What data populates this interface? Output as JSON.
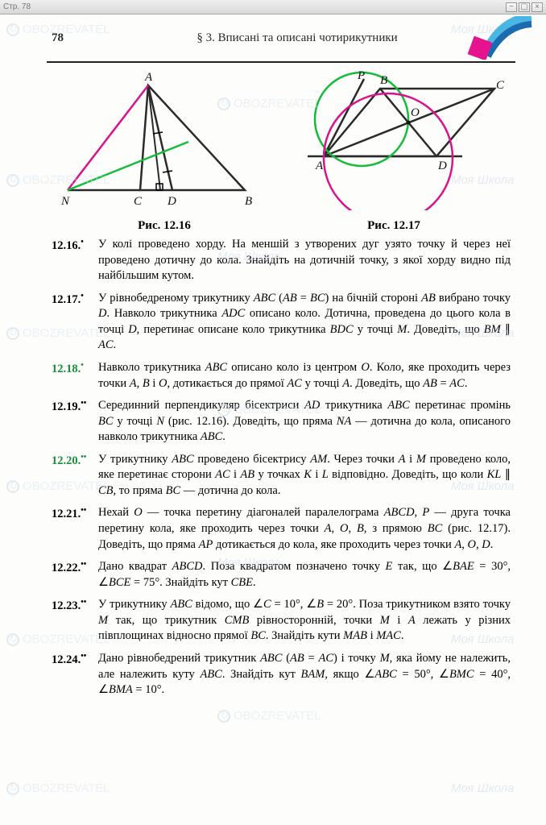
{
  "browser": {
    "left": "Стр. 78",
    "right_icons": [
      "▭",
      "⬓",
      "✕"
    ]
  },
  "header": {
    "page_number": "78",
    "section": "§ 3. Вписані та описані чотирикутники"
  },
  "watermarks": {
    "text_obz": "OBOZREVATEL",
    "text_school": "Моя Школа"
  },
  "figures": {
    "fig1_caption": "Рис. 12.16",
    "fig2_caption": "Рис. 12.17",
    "fig1_labels": {
      "A": "A",
      "N": "N",
      "C": "C",
      "D": "D",
      "B": "B"
    },
    "fig2_labels": {
      "P": "P",
      "B": "B",
      "C": "C",
      "A": "A",
      "O": "O",
      "D": "D"
    },
    "colors": {
      "stroke": "#2a2a2a",
      "green": "#14bc3a",
      "magenta": "#d8138e",
      "tick": "#000000"
    }
  },
  "problems": [
    {
      "num": "12.16.",
      "sup": "•",
      "green": false,
      "text": "У колі проведено хорду. На меншій з утворених дуг узято точку й через неї проведено дотичну до кола. Знайдіть на дотичній точку, з якої хорду видно під найбільшим кутом."
    },
    {
      "num": "12.17.",
      "sup": "•",
      "green": false,
      "text": "У рівнобедреному трикутнику <em>ABC</em> (<em>AB</em> = <em>BC</em>) на бічній стороні <em>AB</em> вибрано точку <em>D</em>. Навколо трикутника <em>ADC</em> описано коло. Дотична, проведена до цього кола в точці <em>D</em>, перетинає описане коло трикутника <em>BDC</em> у точці <em>M</em>. Доведіть, що <em>BM</em> ∥ <em>AC</em>."
    },
    {
      "num": "12.18.",
      "sup": "•",
      "green": true,
      "text": "Навколо трикутника <em>ABC</em> описано коло із центром <em>O</em>. Коло, яке проходить через точки <em>A</em>, <em>B</em> і <em>O</em>, дотикається до прямої <em>AC</em> у точці <em>A</em>. Доведіть, що <em>AB</em> = <em>AC</em>."
    },
    {
      "num": "12.19.",
      "sup": "••",
      "green": false,
      "text": "Серединний перпендикуляр бісектриси <em>AD</em> трикутника <em>ABC</em> перетинає промінь <em>BC</em> у точці <em>N</em> (рис. 12.16). Доведіть, що пряма <em>NA</em> — дотична до кола, описаного навколо трикутника <em>ABC</em>."
    },
    {
      "num": "12.20.",
      "sup": "••",
      "green": true,
      "text": "У трикутнику <em>ABC</em> проведено бісектрису <em>AM</em>. Через точки <em>A</em> і <em>M</em> проведено коло, яке перетинає сторони <em>AC</em> і <em>AB</em> у точках <em>K</em> і <em>L</em> відповідно. Доведіть, що коли <em>KL</em> ∥ <em>CB</em>, то пряма <em>BC</em> — дотична до кола."
    },
    {
      "num": "12.21.",
      "sup": "••",
      "green": false,
      "text": "Нехай <em>O</em> — точка перетину діагоналей паралелограма <em>ABCD</em>, <em>P</em> — друга точка перетину кола, яке проходить через точки <em>A</em>, <em>O</em>, <em>B</em>, з прямою <em>BC</em> (рис. 12.17). Доведіть, що пряма <em>AP</em> дотикається до кола, яке проходить через точки <em>A</em>, <em>O</em>, <em>D</em>."
    },
    {
      "num": "12.22.",
      "sup": "••",
      "green": false,
      "text": "Дано квадрат <em>ABCD</em>. Поза квадратом позначено точку <em>E</em> так, що ∠<em>BAE</em> = 30°, ∠<em>BCE</em> = 75°. Знайдіть кут <em>CBE</em>."
    },
    {
      "num": "12.23.",
      "sup": "••",
      "green": false,
      "text": "У трикутнику <em>ABC</em> відомо, що ∠<em>C</em> = 10°, ∠<em>B</em> = 20°. Поза трикутником взято точку <em>M</em> так, що трикутник <em>CMB</em> рівносторонній, точки <em>M</em> і <em>A</em> лежать у різних півплощинах відносно прямої <em>BC</em>. Знайдіть кути <em>MAB</em> і <em>MAC</em>."
    },
    {
      "num": "12.24.",
      "sup": "••",
      "green": false,
      "text": "Дано рівнобедрений трикутник <em>ABC</em> (<em>AB</em> = <em>AC</em>) і точку <em>M</em>, яка йому не належить, але належить куту <em>ABC</em>. Знайдіть кут <em>BAM</em>, якщо ∠<em>ABC</em> = 50°, ∠<em>BMC</em> = 40°, ∠<em>BMA</em> = 10°."
    }
  ],
  "corner_decor": {
    "pink": "#e6138e",
    "blue1": "#49b6e4",
    "blue2": "#1a6cae"
  }
}
